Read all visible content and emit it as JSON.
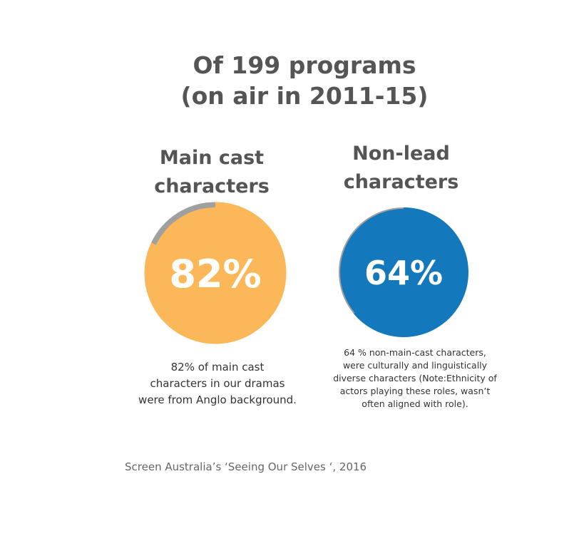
{
  "title_line1": "Of 199 programs",
  "title_line2": "(on air in 2011-15)",
  "chart_data": [
    {
      "type": "pie",
      "style": "donut",
      "title_line1": "Main cast",
      "title_line2": "characters",
      "value": 82,
      "center_label": "82%",
      "colors": {
        "value": "#FCB858",
        "rest": "#A0A0A0"
      },
      "description_lines": [
        "82% of main cast",
        "characters in our dramas",
        "were from Anglo background."
      ]
    },
    {
      "type": "pie",
      "style": "donut",
      "title_line1": "Non-lead",
      "title_line2": "characters",
      "value": 64,
      "center_label": "64%",
      "colors": {
        "value": "#1378BC",
        "rest": "#A0A0A0"
      },
      "description_lines": [
        "64 % non-main-cast characters,",
        "were culturally and linguistically",
        "diverse characters (Note:Ethnicity of",
        "actors playing these roles, wasn’t",
        "often  aligned with role)."
      ]
    }
  ],
  "source": "Screen Australia’s ‘Seeing Our Selves ‘, 2016"
}
